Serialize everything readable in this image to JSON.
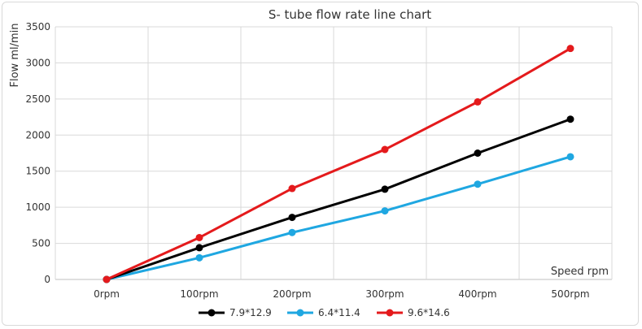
{
  "chart_data": {
    "type": "line",
    "title": "S- tube flow rate line chart",
    "xlabel": "Speed rpm",
    "ylabel": "Flow ml/min",
    "categories": [
      "0rpm",
      "100rpm",
      "200rpm",
      "300rpm",
      "400rpm",
      "500rpm"
    ],
    "ylim": [
      0,
      3500
    ],
    "yticks": [
      0,
      500,
      1000,
      1500,
      2000,
      2500,
      3000,
      3500
    ],
    "grid": true,
    "legend": "bottom",
    "series": [
      {
        "name": "7.9*12.9",
        "color": "#000000",
        "values": [
          0,
          440,
          860,
          1250,
          1750,
          2220
        ]
      },
      {
        "name": "6.4*11.4",
        "color": "#1fa7e1",
        "values": [
          0,
          300,
          650,
          950,
          1320,
          1700
        ]
      },
      {
        "name": "9.6*14.6",
        "color": "#e41a1c",
        "values": [
          0,
          580,
          1260,
          1800,
          2460,
          3200
        ]
      }
    ]
  }
}
